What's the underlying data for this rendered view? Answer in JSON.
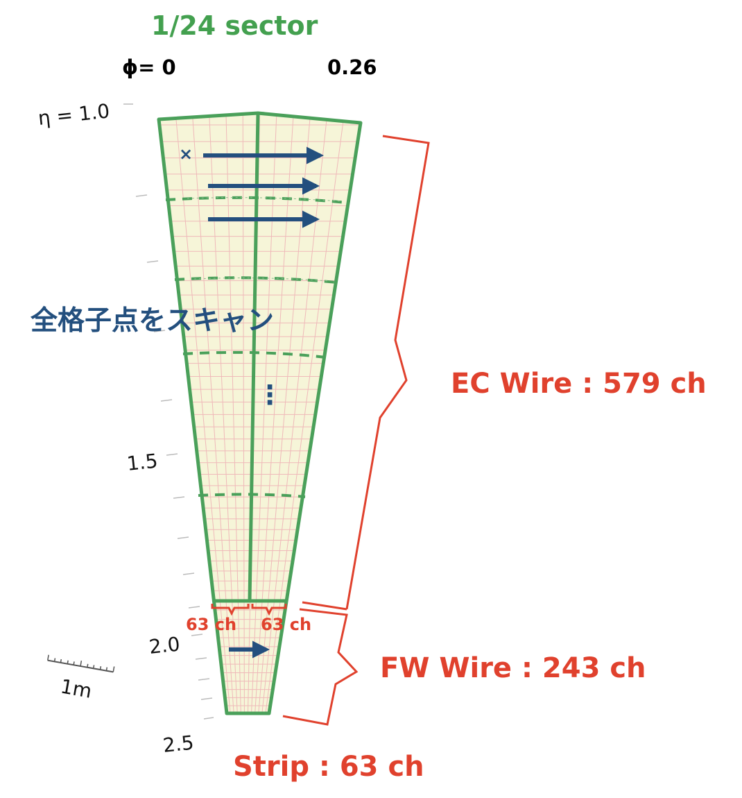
{
  "title": "1/24 sector",
  "phi_labels": {
    "left": "ϕ= 0",
    "right": "0.26"
  },
  "eta_labels": {
    "top": "η = 1.0",
    "mid": "1.5",
    "low": "2.0",
    "bottom": "2.5"
  },
  "scale_bar_label": "1m",
  "scan_label": "全格子点をスキャン",
  "ellipsis": "⋮",
  "scan_marker": "×",
  "ec_wire_label": "EC Wire : 579 ch",
  "fw_wire_label": "FW Wire : 243 ch",
  "strip_label": "Strip : 63 ch",
  "strip_left_label": "63 ch",
  "strip_right_label": "63 ch",
  "colors": {
    "sector_outline": "#4aa05a",
    "sector_fill": "#f6f5d8",
    "grid": "#efb9b9",
    "arrow": "#234f7e",
    "annotation": "#e0412d",
    "title": "#43a04f"
  }
}
